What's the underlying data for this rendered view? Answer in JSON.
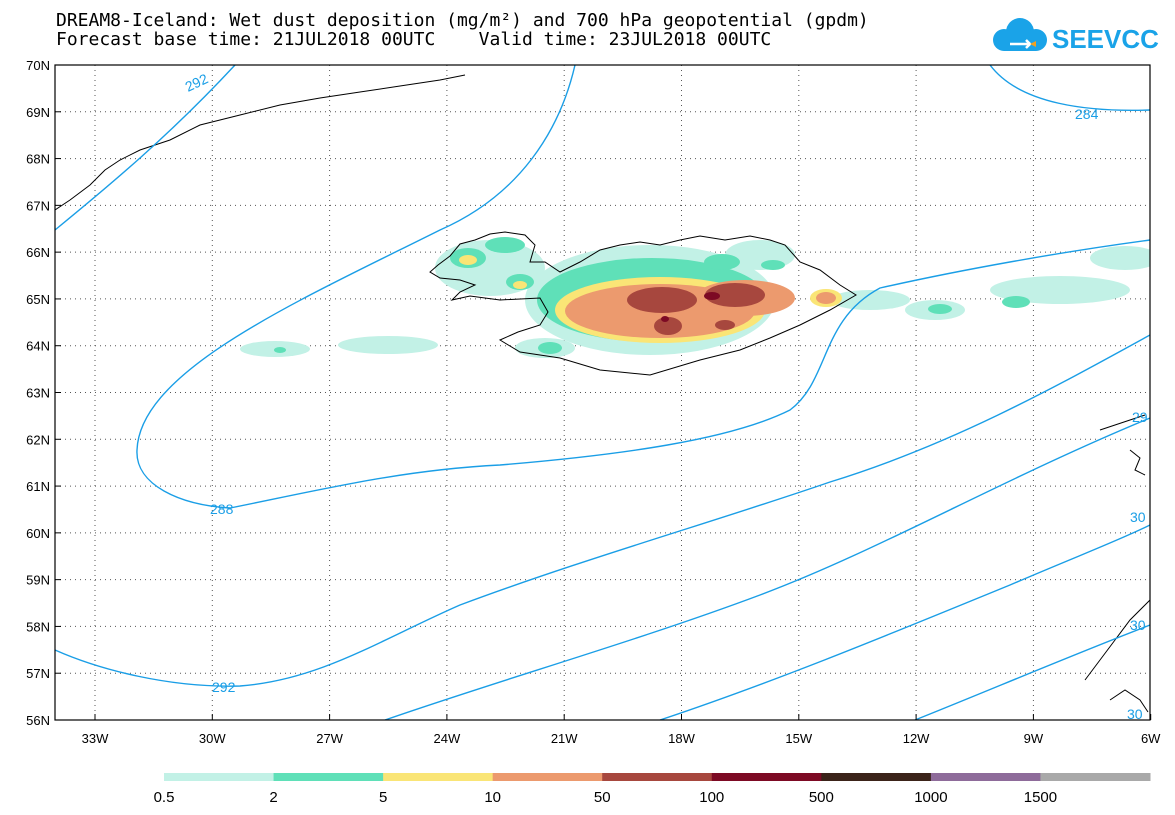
{
  "title": {
    "line1": "DREAM8-Iceland: Wet dust deposition (mg/m²) and 700 hPa geopotential (gpdm)",
    "line2": "Forecast base time: 21JUL2018 00UTC    Valid time: 23JUL2018 00UTC"
  },
  "logo": {
    "text": "SEEVCCC",
    "color": "#1aa3e8"
  },
  "map": {
    "lat_labels": [
      "70N",
      "69N",
      "68N",
      "67N",
      "66N",
      "65N",
      "64N",
      "63N",
      "62N",
      "61N",
      "60N",
      "59N",
      "58N",
      "57N",
      "56N"
    ],
    "lon_labels": [
      "33W",
      "30W",
      "27W",
      "24W",
      "21W",
      "18W",
      "15W",
      "12W",
      "9W",
      "6W"
    ],
    "grid": "dotted",
    "contour_color": "#1a9ee6",
    "contour_labels": [
      "292",
      "284",
      "288",
      "292",
      "29",
      "30",
      "30",
      "30"
    ]
  },
  "colorbar": {
    "ticks": [
      "0.5",
      "2",
      "5",
      "10",
      "50",
      "100",
      "500",
      "1000",
      "1500"
    ],
    "colors": [
      "#c2f1e6",
      "#5fe0b8",
      "#fae576",
      "#ec9a6e",
      "#a7473e",
      "#7d0a24",
      "#3b2319",
      "#8e6b9a",
      "#a9a9a9"
    ]
  }
}
